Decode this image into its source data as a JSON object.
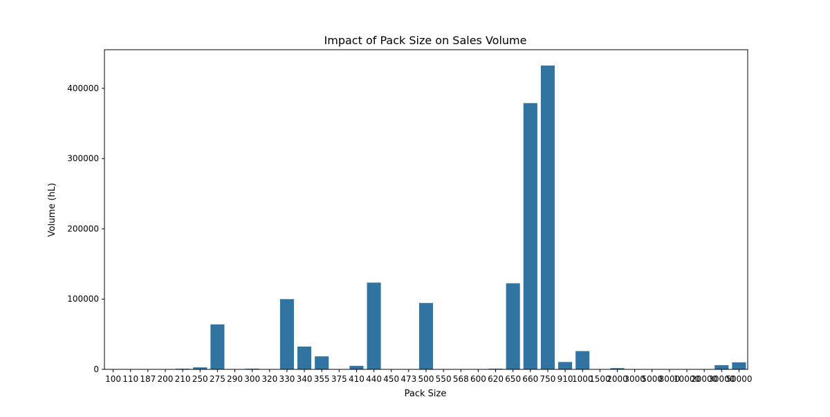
{
  "chart_data": {
    "type": "bar",
    "title": "Impact of Pack Size on Sales Volume",
    "xlabel": "Pack Size",
    "ylabel": "Volume (hL)",
    "ylim": [
      0,
      455000
    ],
    "yticks": [
      0,
      100000,
      200000,
      300000,
      400000
    ],
    "grid": false,
    "bar_color": "#3274a1",
    "categories": [
      "100",
      "110",
      "187",
      "200",
      "210",
      "250",
      "275",
      "290",
      "300",
      "320",
      "330",
      "340",
      "355",
      "375",
      "410",
      "440",
      "450",
      "473",
      "500",
      "550",
      "568",
      "600",
      "620",
      "650",
      "660",
      "750",
      "910",
      "1000",
      "1500",
      "2000",
      "3000",
      "5000",
      "8000",
      "10000",
      "20000",
      "30000",
      "50000"
    ],
    "values": [
      150,
      100,
      250,
      300,
      1000,
      2800,
      64000,
      200,
      1000,
      400,
      100000,
      32500,
      18500,
      300,
      5000,
      123500,
      500,
      300,
      94500,
      200,
      200,
      300,
      1000,
      122500,
      379000,
      432500,
      10500,
      26000,
      200,
      1800,
      200,
      200,
      200,
      200,
      200,
      6000,
      10000
    ]
  }
}
